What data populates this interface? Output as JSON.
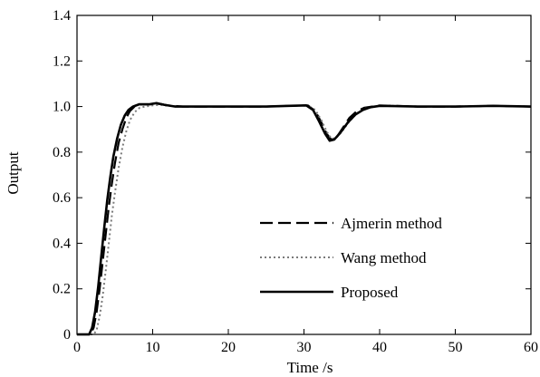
{
  "chart_data": {
    "type": "line",
    "xlabel": "Time /s",
    "ylabel": "Output",
    "xlim": [
      0,
      60
    ],
    "ylim": [
      0,
      1.4
    ],
    "xticks": [
      "0",
      "10",
      "20",
      "30",
      "40",
      "50",
      "60"
    ],
    "yticks": [
      "0",
      "0.2",
      "0.4",
      "0.6",
      "0.8",
      "1.0",
      "1.2",
      "1.4"
    ],
    "grid": false,
    "legend_position": "bottom-right",
    "series": [
      {
        "name": "Ajmerin method",
        "style": "dashed",
        "color": "#000000",
        "points": [
          [
            0,
            0
          ],
          [
            1.8,
            0
          ],
          [
            2.2,
            0.03
          ],
          [
            2.6,
            0.1
          ],
          [
            3.0,
            0.2
          ],
          [
            3.4,
            0.32
          ],
          [
            3.8,
            0.44
          ],
          [
            4.2,
            0.56
          ],
          [
            4.6,
            0.66
          ],
          [
            5.0,
            0.75
          ],
          [
            5.5,
            0.84
          ],
          [
            6.0,
            0.9
          ],
          [
            6.5,
            0.95
          ],
          [
            7.0,
            0.98
          ],
          [
            7.6,
            1.0
          ],
          [
            8.5,
            1.01
          ],
          [
            10,
            1.01
          ],
          [
            11,
            1.012
          ],
          [
            12,
            1.005
          ],
          [
            14,
            1.0
          ],
          [
            20,
            1.0
          ],
          [
            25,
            1.0
          ],
          [
            28,
            1.003
          ],
          [
            30.5,
            1.005
          ],
          [
            31.5,
            0.98
          ],
          [
            32.3,
            0.93
          ],
          [
            33.0,
            0.88
          ],
          [
            33.6,
            0.855
          ],
          [
            34.2,
            0.86
          ],
          [
            35.0,
            0.9
          ],
          [
            36.0,
            0.95
          ],
          [
            37.0,
            0.98
          ],
          [
            38.0,
            0.995
          ],
          [
            39.0,
            1.0
          ],
          [
            40,
            1.005
          ],
          [
            42,
            1.003
          ],
          [
            45,
            1.0
          ],
          [
            50,
            1.0
          ],
          [
            55,
            1.003
          ],
          [
            60,
            1.0
          ]
        ]
      },
      {
        "name": "Wang method",
        "style": "dotted",
        "color": "#7a7a7a",
        "points": [
          [
            0,
            0
          ],
          [
            2.2,
            0
          ],
          [
            2.6,
            0.02
          ],
          [
            3.0,
            0.08
          ],
          [
            3.4,
            0.17
          ],
          [
            3.8,
            0.28
          ],
          [
            4.2,
            0.4
          ],
          [
            4.6,
            0.52
          ],
          [
            5.0,
            0.62
          ],
          [
            5.5,
            0.73
          ],
          [
            6.0,
            0.82
          ],
          [
            6.5,
            0.89
          ],
          [
            7.0,
            0.94
          ],
          [
            7.6,
            0.975
          ],
          [
            8.3,
            0.995
          ],
          [
            9.0,
            1.0
          ],
          [
            10,
            1.005
          ],
          [
            11,
            1.008
          ],
          [
            12,
            1.003
          ],
          [
            14,
            1.0
          ],
          [
            20,
            1.0
          ],
          [
            25,
            1.0
          ],
          [
            28,
            1.003
          ],
          [
            30.5,
            1.005
          ],
          [
            31.5,
            0.985
          ],
          [
            32.3,
            0.94
          ],
          [
            33.0,
            0.89
          ],
          [
            33.6,
            0.86
          ],
          [
            34.2,
            0.86
          ],
          [
            35.0,
            0.89
          ],
          [
            36.0,
            0.935
          ],
          [
            37.0,
            0.97
          ],
          [
            38.0,
            0.99
          ],
          [
            39.0,
            0.998
          ],
          [
            40,
            1.003
          ],
          [
            42,
            1.003
          ],
          [
            45,
            1.0
          ],
          [
            50,
            1.0
          ],
          [
            55,
            1.003
          ],
          [
            60,
            1.0
          ]
        ]
      },
      {
        "name": "Proposed",
        "style": "solid",
        "color": "#000000",
        "points": [
          [
            0,
            0
          ],
          [
            1.6,
            0
          ],
          [
            2.0,
            0.03
          ],
          [
            2.4,
            0.1
          ],
          [
            2.8,
            0.21
          ],
          [
            3.2,
            0.34
          ],
          [
            3.6,
            0.47
          ],
          [
            4.0,
            0.59
          ],
          [
            4.4,
            0.69
          ],
          [
            4.8,
            0.78
          ],
          [
            5.3,
            0.86
          ],
          [
            5.8,
            0.92
          ],
          [
            6.3,
            0.96
          ],
          [
            6.8,
            0.985
          ],
          [
            7.4,
            1.0
          ],
          [
            8.2,
            1.01
          ],
          [
            9.5,
            1.01
          ],
          [
            10.5,
            1.015
          ],
          [
            11.5,
            1.008
          ],
          [
            13,
            1.0
          ],
          [
            20,
            1.0
          ],
          [
            25,
            1.0
          ],
          [
            28,
            1.003
          ],
          [
            30.3,
            1.005
          ],
          [
            31.2,
            0.985
          ],
          [
            32.0,
            0.935
          ],
          [
            32.8,
            0.88
          ],
          [
            33.4,
            0.85
          ],
          [
            34.0,
            0.855
          ],
          [
            34.8,
            0.885
          ],
          [
            35.8,
            0.93
          ],
          [
            36.8,
            0.965
          ],
          [
            37.8,
            0.985
          ],
          [
            38.8,
            0.997
          ],
          [
            40,
            1.003
          ],
          [
            42,
            1.002
          ],
          [
            45,
            1.0
          ],
          [
            50,
            1.0
          ],
          [
            55,
            1.003
          ],
          [
            60,
            1.0
          ]
        ]
      }
    ]
  }
}
